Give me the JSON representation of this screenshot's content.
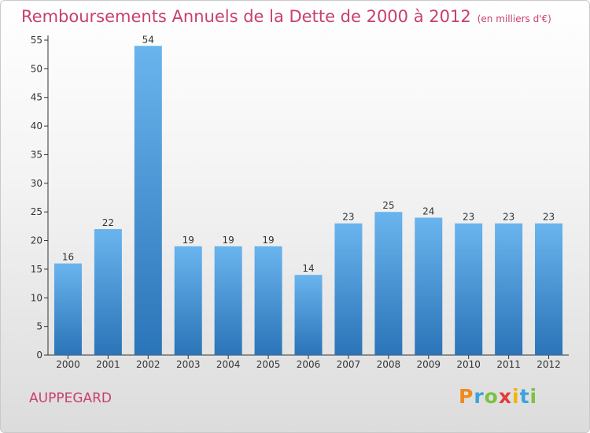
{
  "chart_data": {
    "type": "bar",
    "title": "Remboursements Annuels de la Dette de 2000 à 2012",
    "subtitle": "(en milliers d'€)",
    "categories": [
      "2000",
      "2001",
      "2002",
      "2003",
      "2004",
      "2005",
      "2006",
      "2007",
      "2008",
      "2009",
      "2010",
      "2011",
      "2012"
    ],
    "values": [
      16,
      22,
      54,
      19,
      19,
      19,
      14,
      23,
      25,
      24,
      23,
      23,
      23
    ],
    "ylim": [
      0,
      55
    ],
    "yticks": [
      0,
      5,
      10,
      15,
      20,
      25,
      30,
      35,
      40,
      45,
      50,
      55
    ],
    "grid": false,
    "bar_color": "#3d8fd6",
    "bar_color_light": "#6ab4ee",
    "bar_color_dark": "#2a74b8"
  },
  "footer": {
    "commune": "AUPPEGARD"
  },
  "logo": {
    "letters": [
      "P",
      "r",
      "o",
      "x",
      "i",
      "t",
      "i"
    ],
    "colors": [
      "#f08a1c",
      "#3aa2dd",
      "#7cc242",
      "#e43b3b",
      "#f2b400",
      "#3aa2dd",
      "#7cc242"
    ]
  },
  "colors": {
    "title": "#c8406a",
    "axis": "#333333"
  }
}
